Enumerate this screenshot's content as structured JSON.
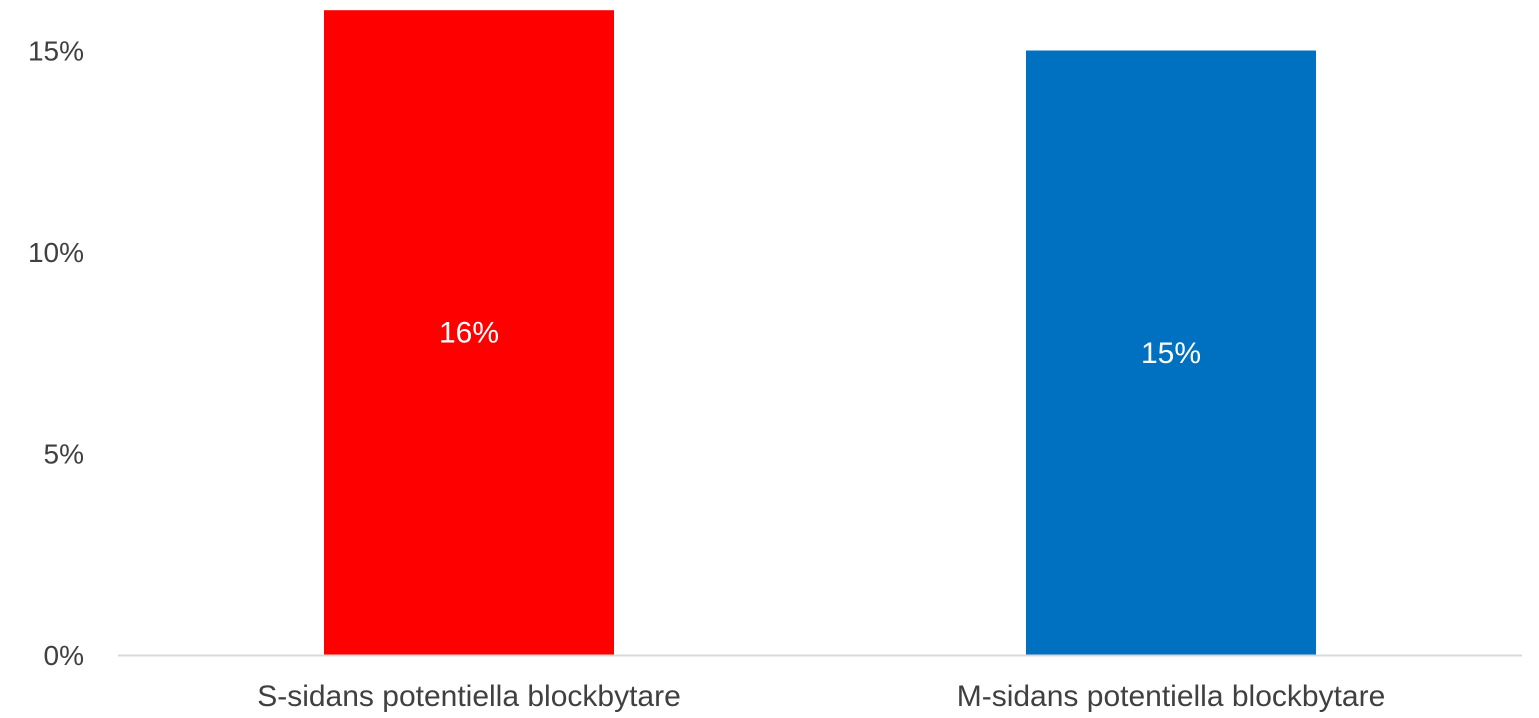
{
  "chart_data": {
    "type": "bar",
    "title": "",
    "xlabel": "",
    "ylabel": "",
    "categories": [
      "S-sidans potentiella blockbytare",
      "M-sidans potentiella blockbytare"
    ],
    "values": [
      16,
      15
    ],
    "data_labels": [
      "16%",
      "15%"
    ],
    "colors": [
      "#ff0000",
      "#0070c0"
    ],
    "ylim": [
      0,
      15.5
    ],
    "yticks": [
      0,
      5,
      10,
      15
    ],
    "ytick_labels": [
      "0%",
      "5%",
      "10%",
      "15%"
    ],
    "grid": false,
    "legend": "none",
    "axis_color": "#d9d9d9",
    "text_color": "#404040"
  }
}
